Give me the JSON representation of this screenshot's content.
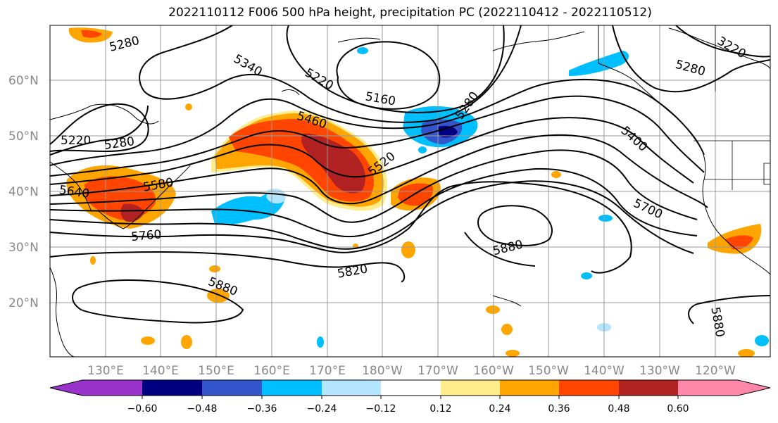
{
  "title": "2022110112 F006 500 hPa height, precipitation PC (2022110412 - 2022110512)",
  "lat_labels": [
    "60°N",
    "50°N",
    "40°N",
    "30°N",
    "20°N"
  ],
  "lon_labels": [
    "130°E",
    "140°E",
    "150°E",
    "160°E",
    "170°E",
    "180°W",
    "170°W",
    "160°W",
    "150°W",
    "140°W",
    "130°W",
    "120°W"
  ],
  "contour_labels": [
    "5280",
    "5340",
    "5220",
    "5160",
    "5280",
    "3220",
    "5280",
    "5460",
    "5220",
    "5280",
    "5640",
    "5580",
    "5520",
    "5400",
    "5760",
    "5700",
    "5880",
    "5820",
    "5880",
    "5880"
  ],
  "colorbar": {
    "ticks": [
      "−0.60",
      "−0.48",
      "−0.36",
      "−0.24",
      "−0.12",
      "0.12",
      "0.24",
      "0.36",
      "0.48",
      "0.60"
    ],
    "colors": [
      "#9933cc",
      "#000080",
      "#3355cc",
      "#00bfff",
      "#b3e5fc",
      "#ffffff",
      "#ffec8b",
      "#ffa500",
      "#ff4500",
      "#b22222",
      "#ff88aa"
    ]
  },
  "colors": {
    "pos_low": "#ffec8b",
    "pos_mid": "#ffa500",
    "pos_high": "#ff4500",
    "pos_max": "#b22222",
    "neg_low": "#b3e5fc",
    "neg_mid": "#00bfff",
    "neg_high": "#3355cc",
    "neg_max": "#000080"
  }
}
